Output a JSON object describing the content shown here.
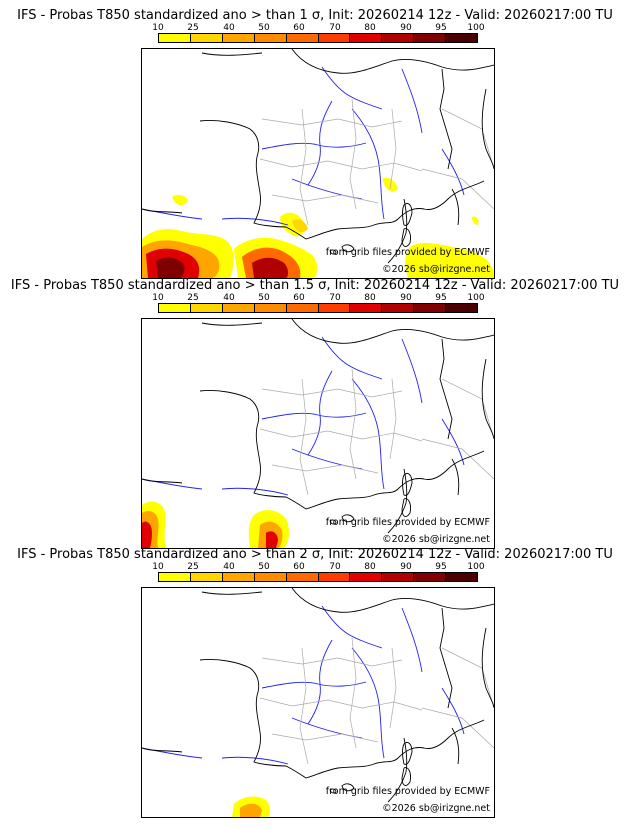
{
  "panels": [
    {
      "title": "IFS - Probas T850  standardized ano > than 1 σ, Init: 20260214 12z - Valid: 20260217:00 TU",
      "credit_source": "from grib files provided by ECMWF",
      "credit_copyright": "©2026 sb@irizgne.net"
    },
    {
      "title": "IFS - Probas T850  standardized ano > than 1.5 σ, Init: 20260214 12z - Valid: 20260217:00 TU",
      "credit_source": "from grib files provided by ECMWF",
      "credit_copyright": "©2026 sb@irizgne.net"
    },
    {
      "title": "IFS - Probas T850  standardized ano > than 2 σ, Init: 20260214 12z - Valid: 20260217:00 TU",
      "credit_source": "from grib files provided by ECMWF",
      "credit_copyright": "©2026 sb@irizgne.net"
    }
  ],
  "scale": {
    "labels": [
      "10",
      "25",
      "40",
      "50",
      "60",
      "70",
      "80",
      "90",
      "95",
      "100"
    ],
    "colors": [
      "#ffff00",
      "#ffd700",
      "#ffa500",
      "#ff8c00",
      "#ff6a00",
      "#ff3c00",
      "#e00000",
      "#b00000",
      "#800000",
      "#4a0000"
    ]
  },
  "colors": {
    "coastline": "#000000",
    "rivers": "#2222ee",
    "regions": "#aaaaaa"
  }
}
